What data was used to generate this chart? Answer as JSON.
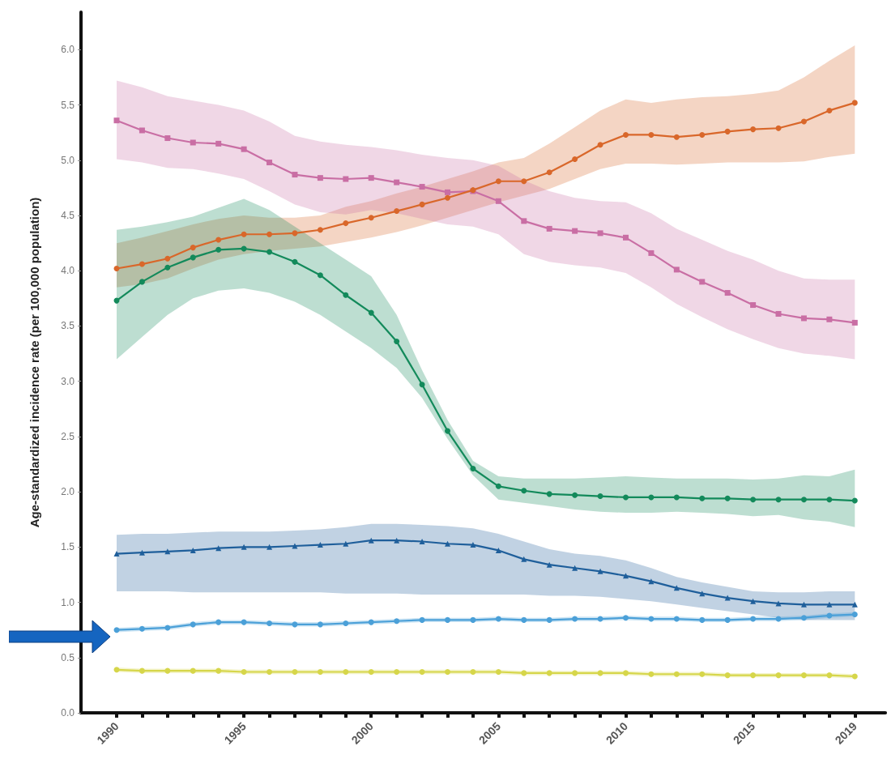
{
  "chart_data": {
    "type": "line",
    "ylabel": "Age-standardized incidence rate (per 100,000 population)",
    "x": [
      1990,
      1991,
      1992,
      1993,
      1994,
      1995,
      1996,
      1997,
      1998,
      1999,
      2000,
      2001,
      2002,
      2003,
      2004,
      2005,
      2006,
      2007,
      2008,
      2009,
      2010,
      2011,
      2012,
      2013,
      2014,
      2015,
      2016,
      2017,
      2018,
      2019
    ],
    "xlim": [
      1988.6,
      2020.2
    ],
    "xticks": [
      1990,
      {
        "value": 1991,
        "label": null
      },
      {
        "value": 1992,
        "label": null
      },
      {
        "value": 1993,
        "label": null
      },
      {
        "value": 1994,
        "label": null
      },
      1995,
      {
        "value": 1996,
        "label": null
      },
      {
        "value": 1997,
        "label": null
      },
      {
        "value": 1998,
        "label": null
      },
      {
        "value": 1999,
        "label": null
      },
      2000,
      {
        "value": 2001,
        "label": null
      },
      {
        "value": 2002,
        "label": null
      },
      {
        "value": 2003,
        "label": null
      },
      {
        "value": 2004,
        "label": null
      },
      2005,
      {
        "value": 2006,
        "label": null
      },
      {
        "value": 2007,
        "label": null
      },
      {
        "value": 2008,
        "label": null
      },
      {
        "value": 2009,
        "label": null
      },
      2010,
      {
        "value": 2011,
        "label": null
      },
      {
        "value": 2012,
        "label": null
      },
      {
        "value": 2013,
        "label": null
      },
      {
        "value": 2014,
        "label": null
      },
      2015,
      {
        "value": 2016,
        "label": null
      },
      {
        "value": 2017,
        "label": null
      },
      {
        "value": 2018,
        "label": null
      },
      2019
    ],
    "ylim": [
      0,
      6.34
    ],
    "yticks": [
      {
        "value": 0,
        "label": "0.0"
      },
      0.5,
      {
        "value": 1,
        "label": "1.0"
      },
      1.5,
      {
        "value": 2,
        "label": "2.0"
      },
      2.5,
      {
        "value": 3,
        "label": "3.0"
      },
      3.5,
      {
        "value": 4,
        "label": "4.0"
      },
      4.5,
      {
        "value": 5,
        "label": "5.0"
      },
      5.5,
      {
        "value": 6,
        "label": "6.0"
      }
    ],
    "line_style": "solid",
    "series": [
      {
        "color": "#d9672a",
        "marker": "circle",
        "values": [
          4.02,
          4.06,
          4.11,
          4.21,
          4.28,
          4.33,
          4.33,
          4.34,
          4.37,
          4.43,
          4.48,
          4.54,
          4.6,
          4.66,
          4.73,
          4.81,
          4.81,
          4.89,
          5.01,
          5.14,
          5.23,
          5.23,
          5.21,
          5.23,
          5.26,
          5.28,
          5.29,
          5.35,
          5.45,
          5.52
        ],
        "lower": [
          3.85,
          3.88,
          3.93,
          4.02,
          4.1,
          4.15,
          4.18,
          4.2,
          4.22,
          4.26,
          4.3,
          4.35,
          4.41,
          4.48,
          4.55,
          4.62,
          4.68,
          4.74,
          4.83,
          4.92,
          4.97,
          4.97,
          4.96,
          4.97,
          4.98,
          4.98,
          4.98,
          4.99,
          5.03,
          5.06
        ],
        "upper": [
          4.25,
          4.3,
          4.36,
          4.42,
          4.47,
          4.5,
          4.48,
          4.48,
          4.5,
          4.58,
          4.63,
          4.7,
          4.76,
          4.83,
          4.9,
          4.98,
          5.02,
          5.15,
          5.3,
          5.45,
          5.55,
          5.52,
          5.55,
          5.57,
          5.58,
          5.6,
          5.63,
          5.75,
          5.9,
          6.04
        ]
      },
      {
        "color": "#c96ea4",
        "marker": "square",
        "values": [
          5.36,
          5.27,
          5.2,
          5.16,
          5.15,
          5.1,
          4.98,
          4.87,
          4.84,
          4.83,
          4.84,
          4.8,
          4.76,
          4.71,
          4.72,
          4.63,
          4.45,
          4.38,
          4.36,
          4.34,
          4.3,
          4.16,
          4.01,
          3.9,
          3.8,
          3.69,
          3.61,
          3.57,
          3.56,
          3.53
        ],
        "lower": [
          5.01,
          4.98,
          4.93,
          4.92,
          4.88,
          4.83,
          4.72,
          4.6,
          4.53,
          4.51,
          4.55,
          4.52,
          4.47,
          4.42,
          4.4,
          4.33,
          4.15,
          4.08,
          4.05,
          4.03,
          3.98,
          3.85,
          3.7,
          3.58,
          3.47,
          3.38,
          3.3,
          3.25,
          3.23,
          3.2
        ],
        "upper": [
          5.72,
          5.66,
          5.58,
          5.54,
          5.5,
          5.45,
          5.35,
          5.22,
          5.17,
          5.14,
          5.12,
          5.09,
          5.05,
          5.02,
          5.0,
          4.95,
          4.82,
          4.72,
          4.66,
          4.63,
          4.62,
          4.52,
          4.38,
          4.28,
          4.18,
          4.1,
          4.0,
          3.93,
          3.92,
          3.92
        ]
      },
      {
        "color": "#138a5b",
        "marker": "circle",
        "values": [
          3.73,
          3.9,
          4.03,
          4.12,
          4.19,
          4.2,
          4.17,
          4.08,
          3.96,
          3.78,
          3.62,
          3.36,
          2.97,
          2.55,
          2.21,
          2.05,
          2.01,
          1.98,
          1.97,
          1.96,
          1.95,
          1.95,
          1.95,
          1.94,
          1.94,
          1.93,
          1.93,
          1.93,
          1.93,
          1.92
        ],
        "lower": [
          3.2,
          3.4,
          3.6,
          3.75,
          3.82,
          3.84,
          3.8,
          3.72,
          3.6,
          3.45,
          3.3,
          3.12,
          2.85,
          2.48,
          2.15,
          1.93,
          1.9,
          1.87,
          1.84,
          1.82,
          1.81,
          1.81,
          1.82,
          1.81,
          1.8,
          1.78,
          1.79,
          1.75,
          1.73,
          1.68
        ],
        "upper": [
          4.37,
          4.4,
          4.44,
          4.49,
          4.57,
          4.65,
          4.55,
          4.4,
          4.25,
          4.1,
          3.95,
          3.6,
          3.1,
          2.65,
          2.28,
          2.14,
          2.12,
          2.12,
          2.12,
          2.13,
          2.14,
          2.13,
          2.12,
          2.12,
          2.12,
          2.11,
          2.12,
          2.15,
          2.14,
          2.2
        ]
      },
      {
        "color": "#1f5f9b",
        "marker": "triangle",
        "values": [
          1.44,
          1.45,
          1.46,
          1.47,
          1.49,
          1.5,
          1.5,
          1.51,
          1.52,
          1.53,
          1.56,
          1.56,
          1.55,
          1.53,
          1.52,
          1.47,
          1.39,
          1.34,
          1.31,
          1.28,
          1.24,
          1.19,
          1.13,
          1.08,
          1.04,
          1.01,
          0.99,
          0.98,
          0.98,
          0.98
        ],
        "lower": [
          1.1,
          1.1,
          1.1,
          1.09,
          1.09,
          1.09,
          1.09,
          1.09,
          1.09,
          1.08,
          1.08,
          1.08,
          1.07,
          1.07,
          1.07,
          1.07,
          1.07,
          1.06,
          1.06,
          1.05,
          1.03,
          1.01,
          0.98,
          0.95,
          0.92,
          0.89,
          0.86,
          0.84,
          0.84,
          0.84
        ],
        "upper": [
          1.61,
          1.62,
          1.62,
          1.63,
          1.64,
          1.64,
          1.64,
          1.65,
          1.66,
          1.68,
          1.71,
          1.71,
          1.7,
          1.69,
          1.67,
          1.62,
          1.55,
          1.48,
          1.44,
          1.42,
          1.38,
          1.31,
          1.23,
          1.18,
          1.14,
          1.1,
          1.09,
          1.09,
          1.1,
          1.1
        ]
      },
      {
        "color": "#4ba0d8",
        "marker": "circle",
        "values": [
          0.75,
          0.76,
          0.77,
          0.8,
          0.82,
          0.82,
          0.81,
          0.8,
          0.8,
          0.81,
          0.82,
          0.83,
          0.84,
          0.84,
          0.84,
          0.85,
          0.84,
          0.84,
          0.85,
          0.85,
          0.86,
          0.85,
          0.85,
          0.84,
          0.84,
          0.85,
          0.85,
          0.86,
          0.88,
          0.89
        ],
        "lower": [
          0.73,
          0.74,
          0.75,
          0.78,
          0.8,
          0.8,
          0.79,
          0.78,
          0.78,
          0.79,
          0.8,
          0.81,
          0.82,
          0.82,
          0.82,
          0.83,
          0.82,
          0.82,
          0.83,
          0.83,
          0.84,
          0.83,
          0.83,
          0.82,
          0.82,
          0.83,
          0.83,
          0.84,
          0.86,
          0.87
        ],
        "upper": [
          0.77,
          0.78,
          0.79,
          0.82,
          0.84,
          0.84,
          0.83,
          0.82,
          0.82,
          0.83,
          0.84,
          0.85,
          0.86,
          0.86,
          0.86,
          0.87,
          0.86,
          0.86,
          0.87,
          0.87,
          0.88,
          0.87,
          0.87,
          0.86,
          0.86,
          0.87,
          0.87,
          0.88,
          0.9,
          0.91
        ]
      },
      {
        "color": "#d6d64a",
        "marker": "circle",
        "values": [
          0.39,
          0.38,
          0.38,
          0.38,
          0.38,
          0.37,
          0.37,
          0.37,
          0.37,
          0.37,
          0.37,
          0.37,
          0.37,
          0.37,
          0.37,
          0.37,
          0.36,
          0.36,
          0.36,
          0.36,
          0.36,
          0.35,
          0.35,
          0.35,
          0.34,
          0.34,
          0.34,
          0.34,
          0.34,
          0.33
        ],
        "lower": [
          0.37,
          0.36,
          0.36,
          0.36,
          0.36,
          0.35,
          0.35,
          0.35,
          0.35,
          0.35,
          0.35,
          0.35,
          0.35,
          0.35,
          0.35,
          0.35,
          0.34,
          0.34,
          0.34,
          0.34,
          0.34,
          0.33,
          0.33,
          0.33,
          0.32,
          0.32,
          0.32,
          0.32,
          0.32,
          0.31
        ],
        "upper": [
          0.41,
          0.4,
          0.4,
          0.4,
          0.4,
          0.39,
          0.39,
          0.39,
          0.39,
          0.39,
          0.39,
          0.39,
          0.39,
          0.39,
          0.39,
          0.39,
          0.38,
          0.38,
          0.38,
          0.38,
          0.38,
          0.37,
          0.37,
          0.37,
          0.36,
          0.36,
          0.36,
          0.36,
          0.36,
          0.35
        ]
      }
    ]
  }
}
